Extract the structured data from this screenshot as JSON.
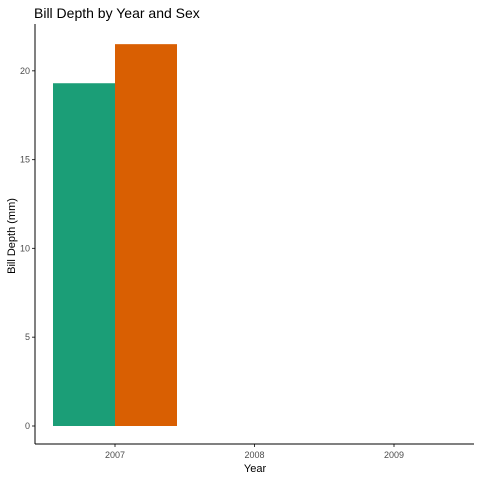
{
  "chart_data": {
    "type": "bar",
    "title": "Bill Depth by Year and Sex",
    "xlabel": "Year",
    "ylabel": "Bill Depth (mm)",
    "categories": [
      "2007",
      "2008",
      "2009"
    ],
    "ylim": [
      0,
      22.7
    ],
    "yticks": [
      0,
      5,
      10,
      15,
      20
    ],
    "grid": false,
    "legend": "none",
    "series": [
      {
        "color": "#1b9e77",
        "values": [
          19.3,
          null,
          null
        ]
      },
      {
        "color": "#d95f02",
        "values": [
          21.5,
          null,
          null
        ]
      }
    ]
  }
}
